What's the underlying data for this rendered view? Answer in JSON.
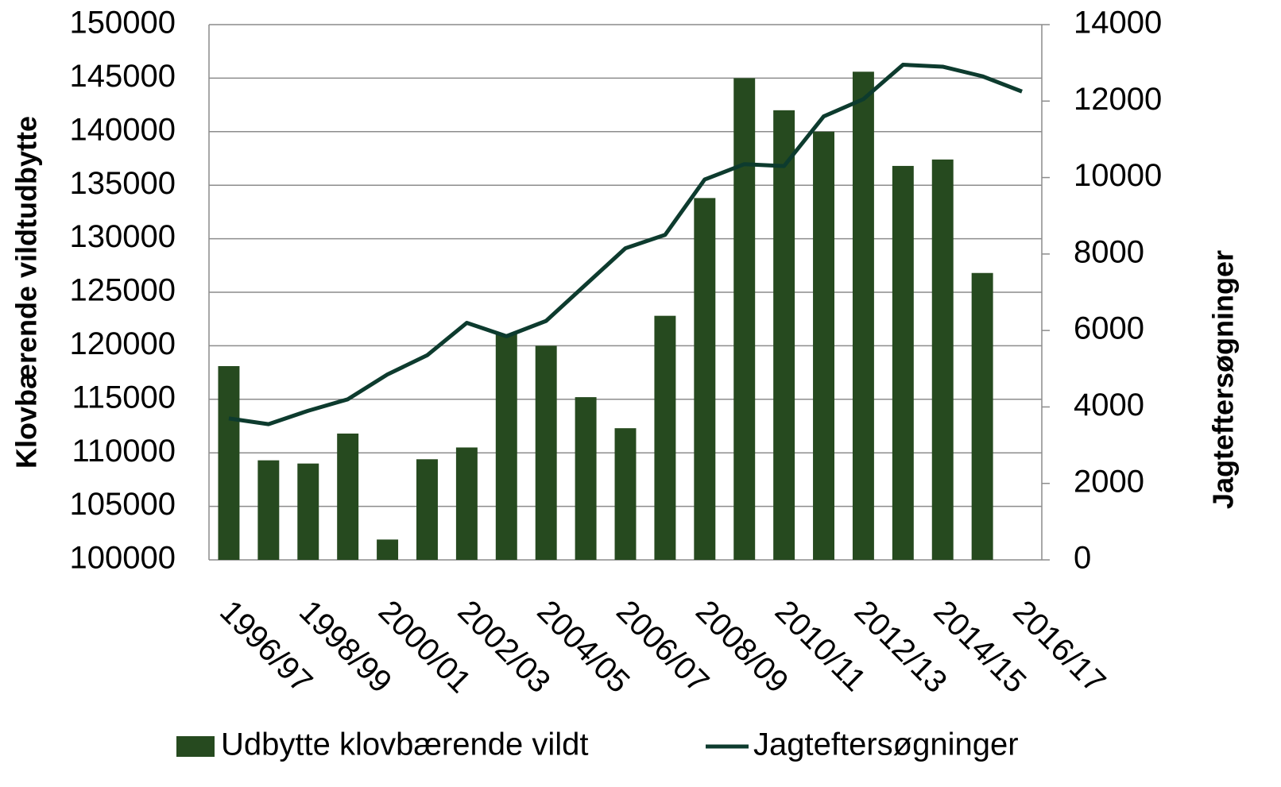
{
  "chart_data": {
    "type": "bar_line",
    "categories": [
      "1996/97",
      null,
      "1998/99",
      null,
      "2000/01",
      null,
      "2002/03",
      null,
      "2004/05",
      null,
      "2006/07",
      null,
      "2008/09",
      null,
      "2010/11",
      null,
      "2012/13",
      null,
      "2014/15",
      null,
      "2016/17"
    ],
    "series": [
      {
        "name": "Udbytte klovbærende vildt",
        "type": "bar",
        "color": "#264a1f",
        "values": [
          118100,
          109300,
          109000,
          111800,
          101900,
          109400,
          110500,
          121100,
          120000,
          115200,
          112300,
          122800,
          133800,
          145000,
          142000,
          140000,
          145600,
          136800,
          137400,
          126800,
          null
        ]
      },
      {
        "name": "Jagteftersøgninger",
        "type": "line",
        "axis": "y2",
        "color": "#0d3b2e",
        "values": [
          3700,
          3550,
          3900,
          4200,
          4850,
          5350,
          6200,
          5850,
          6250,
          7200,
          8150,
          8500,
          9950,
          10350,
          10300,
          11600,
          12050,
          12950,
          12900,
          12650,
          12250
        ]
      }
    ],
    "y_label": "Klovbærende vildtudbytte",
    "y2_label": "Jagteftersøgninger",
    "ylim": [
      100000,
      150000
    ],
    "yticks": [
      100000,
      105000,
      110000,
      115000,
      120000,
      125000,
      130000,
      135000,
      140000,
      145000,
      150000
    ],
    "y2lim": [
      0,
      14000
    ],
    "y2ticks": [
      0,
      2000,
      4000,
      6000,
      8000,
      10000,
      12000,
      14000
    ],
    "grid": true,
    "legend": "bottom"
  }
}
